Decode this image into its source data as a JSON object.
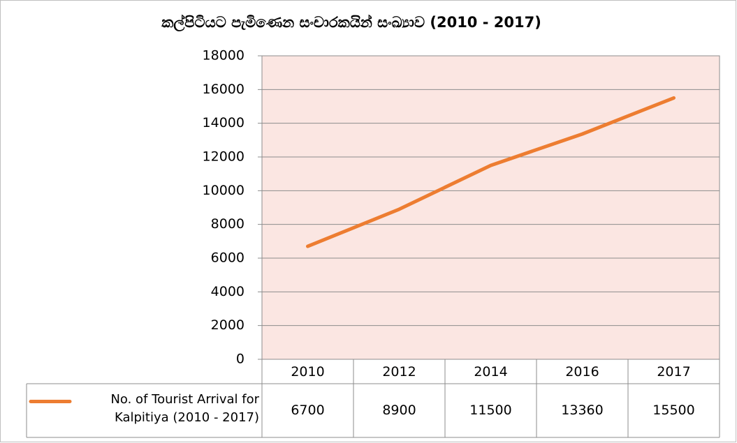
{
  "chart_data": {
    "type": "line",
    "title": "කල්පිටියට පැමිණෙන සංචාරකයින් සංඛ්‍යාව (2010 - 2017)",
    "categories": [
      "2010",
      "2012",
      "2014",
      "2016",
      "2017"
    ],
    "series": [
      {
        "name": "No. of Tourist Arrival for Kalpitiya (2010 - 2017)",
        "color": "#ed7d31",
        "values": [
          6700,
          8900,
          11500,
          13360,
          15500
        ]
      }
    ],
    "ylim": [
      0,
      18000
    ],
    "yticks": [
      0,
      2000,
      4000,
      6000,
      8000,
      10000,
      12000,
      14000,
      16000,
      18000
    ],
    "grid": true,
    "plot_background": "#fbe6e2",
    "data_table": true
  }
}
